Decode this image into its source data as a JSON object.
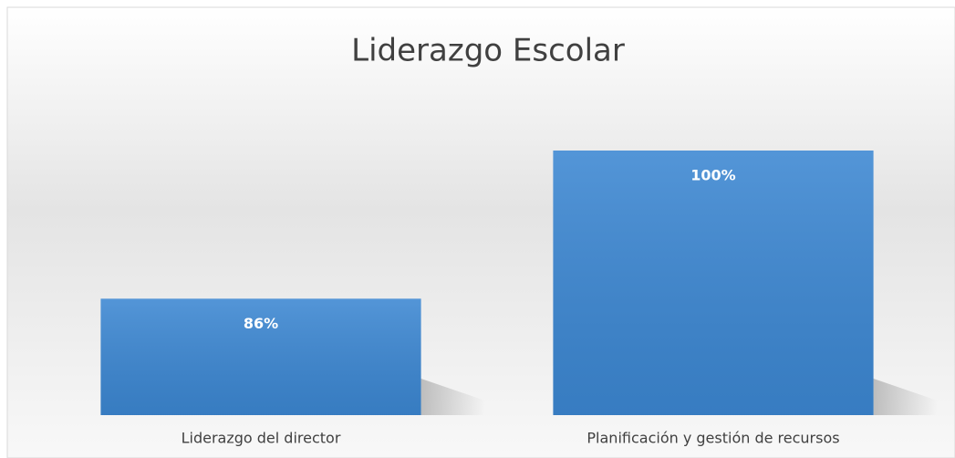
{
  "chart_data": {
    "type": "bar",
    "title": "Liderazgo Escolar",
    "categories": [
      "Liderazgo del director",
      "Planificación y gestión de recursos"
    ],
    "values": [
      86,
      100
    ],
    "value_labels": [
      "86%",
      "100%"
    ],
    "color": "#3c87d2",
    "ylim": [
      75,
      100
    ]
  }
}
